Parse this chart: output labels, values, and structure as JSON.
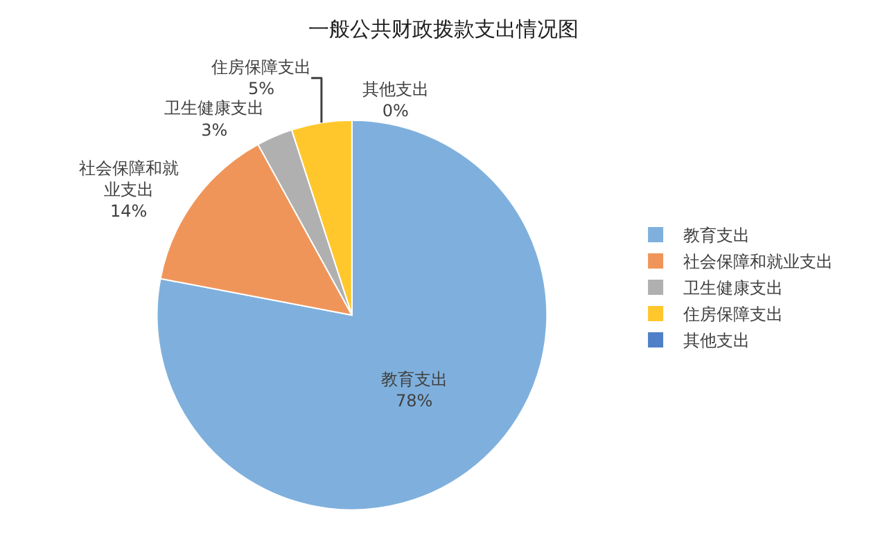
{
  "chart_data": {
    "type": "pie",
    "title": "一般公共财政拨款支出情况图",
    "categories": [
      "教育支出",
      "社会保障和就业支出",
      "卫生健康支出",
      "住房保障支出",
      "其他支出"
    ],
    "values": [
      78,
      14,
      3,
      5,
      0
    ],
    "colors": [
      "#7fb0dd",
      "#f0955a",
      "#b0b0b0",
      "#ffc72c",
      "#4f7fc8"
    ],
    "value_labels": [
      "78%",
      "14%",
      "3%",
      "5%",
      "0%"
    ],
    "legend": "right"
  }
}
